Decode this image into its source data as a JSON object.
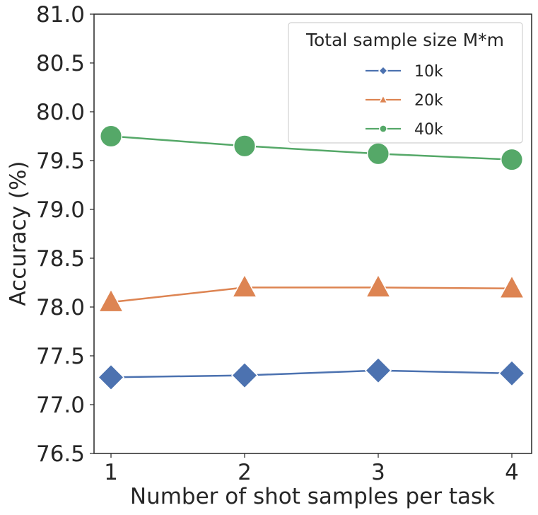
{
  "chart_data": {
    "type": "line",
    "title": "",
    "xlabel": "Number of shot samples per task",
    "ylabel": "Accuracy (%)",
    "x": [
      1,
      2,
      3,
      4
    ],
    "x_tick_labels": [
      "1",
      "2",
      "3",
      "4"
    ],
    "ylim": [
      76.5,
      81.0
    ],
    "y_ticks": [
      76.5,
      77.0,
      77.5,
      78.0,
      78.5,
      79.0,
      79.5,
      80.0,
      80.5,
      81.0
    ],
    "y_tick_labels": [
      "76.5",
      "77.0",
      "77.5",
      "78.0",
      "78.5",
      "79.0",
      "79.5",
      "80.0",
      "80.5",
      "81.0"
    ],
    "grid": false,
    "legend": {
      "title": "Total sample size M*m",
      "position": "top-right"
    },
    "series": [
      {
        "name": "10k",
        "marker": "diamond",
        "color": "#4C72B0",
        "values": [
          77.28,
          77.3,
          77.35,
          77.32
        ]
      },
      {
        "name": "20k",
        "marker": "triangle",
        "color": "#DD8452",
        "values": [
          78.05,
          78.2,
          78.2,
          78.19
        ]
      },
      {
        "name": "40k",
        "marker": "circle",
        "color": "#55A868",
        "values": [
          79.75,
          79.65,
          79.57,
          79.51
        ]
      }
    ]
  }
}
